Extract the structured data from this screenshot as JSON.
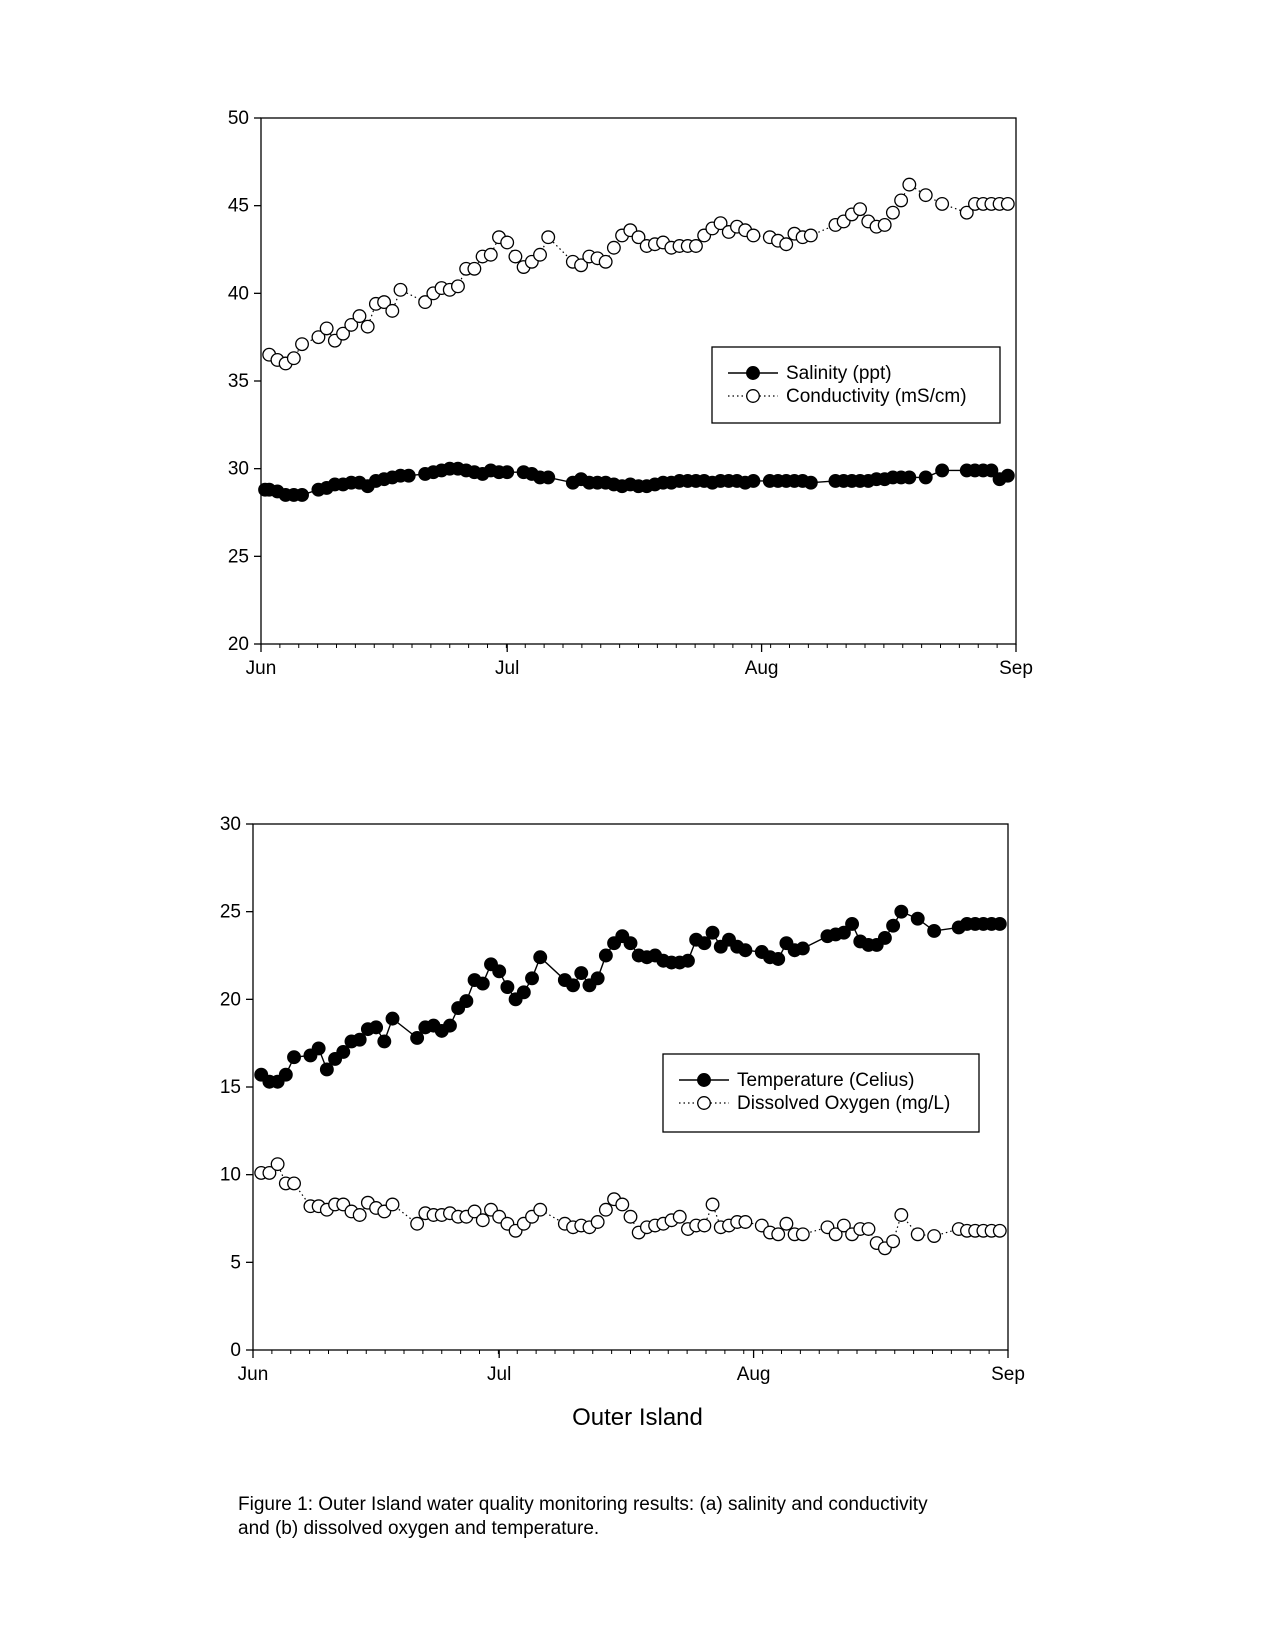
{
  "chart_data": [
    {
      "type": "line",
      "title": "",
      "xlabel": "",
      "ylabel": "",
      "xlim": [
        "Jun",
        "Sep"
      ],
      "ylim": [
        20,
        50
      ],
      "yticks": [
        20,
        25,
        30,
        35,
        40,
        45,
        50
      ],
      "xticks": [
        "Jun",
        "Jul",
        "Aug",
        "Sep"
      ],
      "legend_position": "center-right",
      "series": [
        {
          "name": "Salinity (ppt)",
          "marker": "filled-circle",
          "line": "solid",
          "x": [
            0.5,
            1,
            2,
            3,
            4,
            5,
            7,
            8,
            9,
            10,
            11,
            12,
            13,
            14,
            15,
            16,
            17,
            18,
            20,
            21,
            22,
            23,
            24,
            25,
            26,
            27,
            28,
            29,
            30,
            32,
            33,
            34,
            35,
            38,
            39,
            40,
            41,
            42,
            43,
            44,
            45,
            46,
            47,
            48,
            49,
            50,
            51,
            52,
            53,
            54,
            55,
            56,
            57,
            58,
            59,
            60,
            62,
            63,
            64,
            65,
            66,
            67,
            70,
            71,
            72,
            73,
            74,
            75,
            76,
            77,
            78,
            79,
            81,
            83,
            86,
            87,
            88,
            89,
            90,
            91
          ],
          "y": [
            28.8,
            28.8,
            28.7,
            28.5,
            28.5,
            28.5,
            28.8,
            28.9,
            29.1,
            29.1,
            29.2,
            29.2,
            29.0,
            29.3,
            29.4,
            29.5,
            29.6,
            29.6,
            29.7,
            29.8,
            29.9,
            30.0,
            30.0,
            29.9,
            29.8,
            29.7,
            29.9,
            29.8,
            29.8,
            29.8,
            29.7,
            29.5,
            29.5,
            29.2,
            29.4,
            29.2,
            29.2,
            29.2,
            29.1,
            29.0,
            29.1,
            29.0,
            29.0,
            29.1,
            29.2,
            29.2,
            29.3,
            29.3,
            29.3,
            29.3,
            29.2,
            29.3,
            29.3,
            29.3,
            29.2,
            29.3,
            29.3,
            29.3,
            29.3,
            29.3,
            29.3,
            29.2,
            29.3,
            29.3,
            29.3,
            29.3,
            29.3,
            29.4,
            29.4,
            29.5,
            29.5,
            29.5,
            29.5,
            29.9,
            29.9,
            29.9,
            29.9,
            29.9,
            29.4,
            29.6
          ]
        },
        {
          "name": "Conductivity (mS/cm)",
          "marker": "open-circle",
          "line": "dotted",
          "x": [
            1,
            2,
            3,
            4,
            5,
            7,
            8,
            9,
            10,
            11,
            12,
            13,
            14,
            15,
            16,
            17,
            20,
            21,
            22,
            23,
            24,
            25,
            26,
            27,
            28,
            29,
            30,
            31,
            32,
            33,
            34,
            35,
            38,
            39,
            40,
            41,
            42,
            43,
            44,
            45,
            46,
            47,
            48,
            49,
            50,
            51,
            52,
            53,
            54,
            55,
            56,
            57,
            58,
            59,
            60,
            62,
            63,
            64,
            65,
            66,
            67,
            70,
            71,
            72,
            73,
            74,
            75,
            76,
            77,
            78,
            79,
            81,
            83,
            86,
            87,
            88,
            89,
            90,
            91
          ],
          "y": [
            36.5,
            36.2,
            36.0,
            36.3,
            37.1,
            37.5,
            38.0,
            37.3,
            37.7,
            38.2,
            38.7,
            38.1,
            39.4,
            39.5,
            39.0,
            40.2,
            39.5,
            40.0,
            40.3,
            40.2,
            40.4,
            41.4,
            41.4,
            42.1,
            42.2,
            43.2,
            42.9,
            42.1,
            41.5,
            41.8,
            42.2,
            43.2,
            41.8,
            41.6,
            42.1,
            42.0,
            41.8,
            42.6,
            43.3,
            43.6,
            43.2,
            42.7,
            42.8,
            42.9,
            42.6,
            42.7,
            42.7,
            42.7,
            43.3,
            43.7,
            44.0,
            43.5,
            43.8,
            43.6,
            43.3,
            43.2,
            43.0,
            42.8,
            43.4,
            43.2,
            43.3,
            43.9,
            44.1,
            44.5,
            44.8,
            44.1,
            43.8,
            43.9,
            44.6,
            45.3,
            46.2,
            45.6,
            45.1,
            44.6,
            45.1,
            45.1,
            45.1,
            45.1,
            45.1
          ]
        }
      ]
    },
    {
      "type": "line",
      "title": "",
      "xlabel": "Outer Island",
      "ylabel": "",
      "xlim": [
        "Jun",
        "Sep"
      ],
      "ylim": [
        0,
        30
      ],
      "yticks": [
        0,
        5,
        10,
        15,
        20,
        25,
        30
      ],
      "xticks": [
        "Jun",
        "Jul",
        "Aug",
        "Sep"
      ],
      "legend_position": "center-right",
      "series": [
        {
          "name": "Temperature (Celius)",
          "marker": "filled-circle",
          "line": "solid",
          "x": [
            1,
            2,
            3,
            4,
            5,
            7,
            8,
            9,
            10,
            11,
            12,
            13,
            14,
            15,
            16,
            17,
            20,
            21,
            22,
            23,
            24,
            25,
            26,
            27,
            28,
            29,
            30,
            31,
            32,
            33,
            34,
            35,
            38,
            39,
            40,
            41,
            42,
            43,
            44,
            45,
            46,
            47,
            48,
            49,
            50,
            51,
            52,
            53,
            54,
            55,
            56,
            57,
            58,
            59,
            60,
            62,
            63,
            64,
            65,
            66,
            67,
            70,
            71,
            72,
            73,
            74,
            75,
            76,
            77,
            78,
            79,
            81,
            83,
            86,
            87,
            88,
            89,
            90,
            91
          ],
          "y": [
            15.7,
            15.3,
            15.3,
            15.7,
            16.7,
            16.8,
            17.2,
            16.0,
            16.6,
            17.0,
            17.6,
            17.7,
            18.3,
            18.4,
            17.6,
            18.9,
            17.8,
            18.4,
            18.5,
            18.2,
            18.5,
            19.5,
            19.9,
            21.1,
            20.9,
            22.0,
            21.6,
            20.7,
            20.0,
            20.4,
            21.2,
            22.4,
            21.1,
            20.8,
            21.5,
            20.8,
            21.2,
            22.5,
            23.2,
            23.6,
            23.2,
            22.5,
            22.4,
            22.5,
            22.2,
            22.1,
            22.1,
            22.2,
            23.4,
            23.2,
            23.8,
            23.0,
            23.4,
            23.0,
            22.8,
            22.7,
            22.4,
            22.3,
            23.2,
            22.8,
            22.9,
            23.6,
            23.7,
            23.8,
            24.3,
            23.3,
            23.1,
            23.1,
            23.5,
            24.2,
            25.0,
            24.6,
            23.9,
            24.1,
            24.3,
            24.3,
            24.3,
            24.3,
            24.3
          ]
        },
        {
          "name": "Dissolved Oxygen (mg/L)",
          "marker": "open-circle",
          "line": "dotted",
          "x": [
            1,
            2,
            3,
            4,
            5,
            7,
            8,
            9,
            10,
            11,
            12,
            13,
            14,
            15,
            16,
            17,
            20,
            21,
            22,
            23,
            24,
            25,
            26,
            27,
            28,
            29,
            30,
            31,
            32,
            33,
            34,
            35,
            38,
            39,
            40,
            41,
            42,
            43,
            44,
            45,
            46,
            47,
            48,
            49,
            50,
            51,
            52,
            53,
            54,
            55,
            56,
            57,
            58,
            59,
            60,
            62,
            63,
            64,
            65,
            66,
            67,
            70,
            71,
            72,
            73,
            74,
            75,
            76,
            77,
            78,
            79,
            81,
            83,
            86,
            87,
            88,
            89,
            90,
            91
          ],
          "y": [
            10.1,
            10.1,
            10.6,
            9.5,
            9.5,
            8.2,
            8.2,
            8.0,
            8.3,
            8.3,
            7.9,
            7.7,
            8.4,
            8.1,
            7.9,
            8.3,
            7.2,
            7.8,
            7.7,
            7.7,
            7.8,
            7.6,
            7.6,
            7.9,
            7.4,
            8.0,
            7.6,
            7.2,
            6.8,
            7.2,
            7.6,
            8.0,
            7.2,
            7.0,
            7.1,
            7.0,
            7.3,
            8.0,
            8.6,
            8.3,
            7.6,
            6.7,
            7.0,
            7.1,
            7.2,
            7.4,
            7.6,
            6.9,
            7.1,
            7.1,
            8.3,
            7.0,
            7.1,
            7.3,
            7.3,
            7.1,
            6.7,
            6.6,
            7.2,
            6.6,
            6.6,
            7.0,
            6.6,
            7.1,
            6.6,
            6.9,
            6.9,
            6.1,
            5.8,
            6.2,
            7.7,
            6.6,
            6.5,
            6.9,
            6.8,
            6.8,
            6.8,
            6.8,
            6.8
          ]
        }
      ]
    }
  ],
  "site_title": "Outer Island",
  "caption_line1": "Figure 1: Outer Island water quality monitoring results: (a) salinity and conductivity",
  "caption_line2": "and (b) dissolved oxygen and temperature."
}
